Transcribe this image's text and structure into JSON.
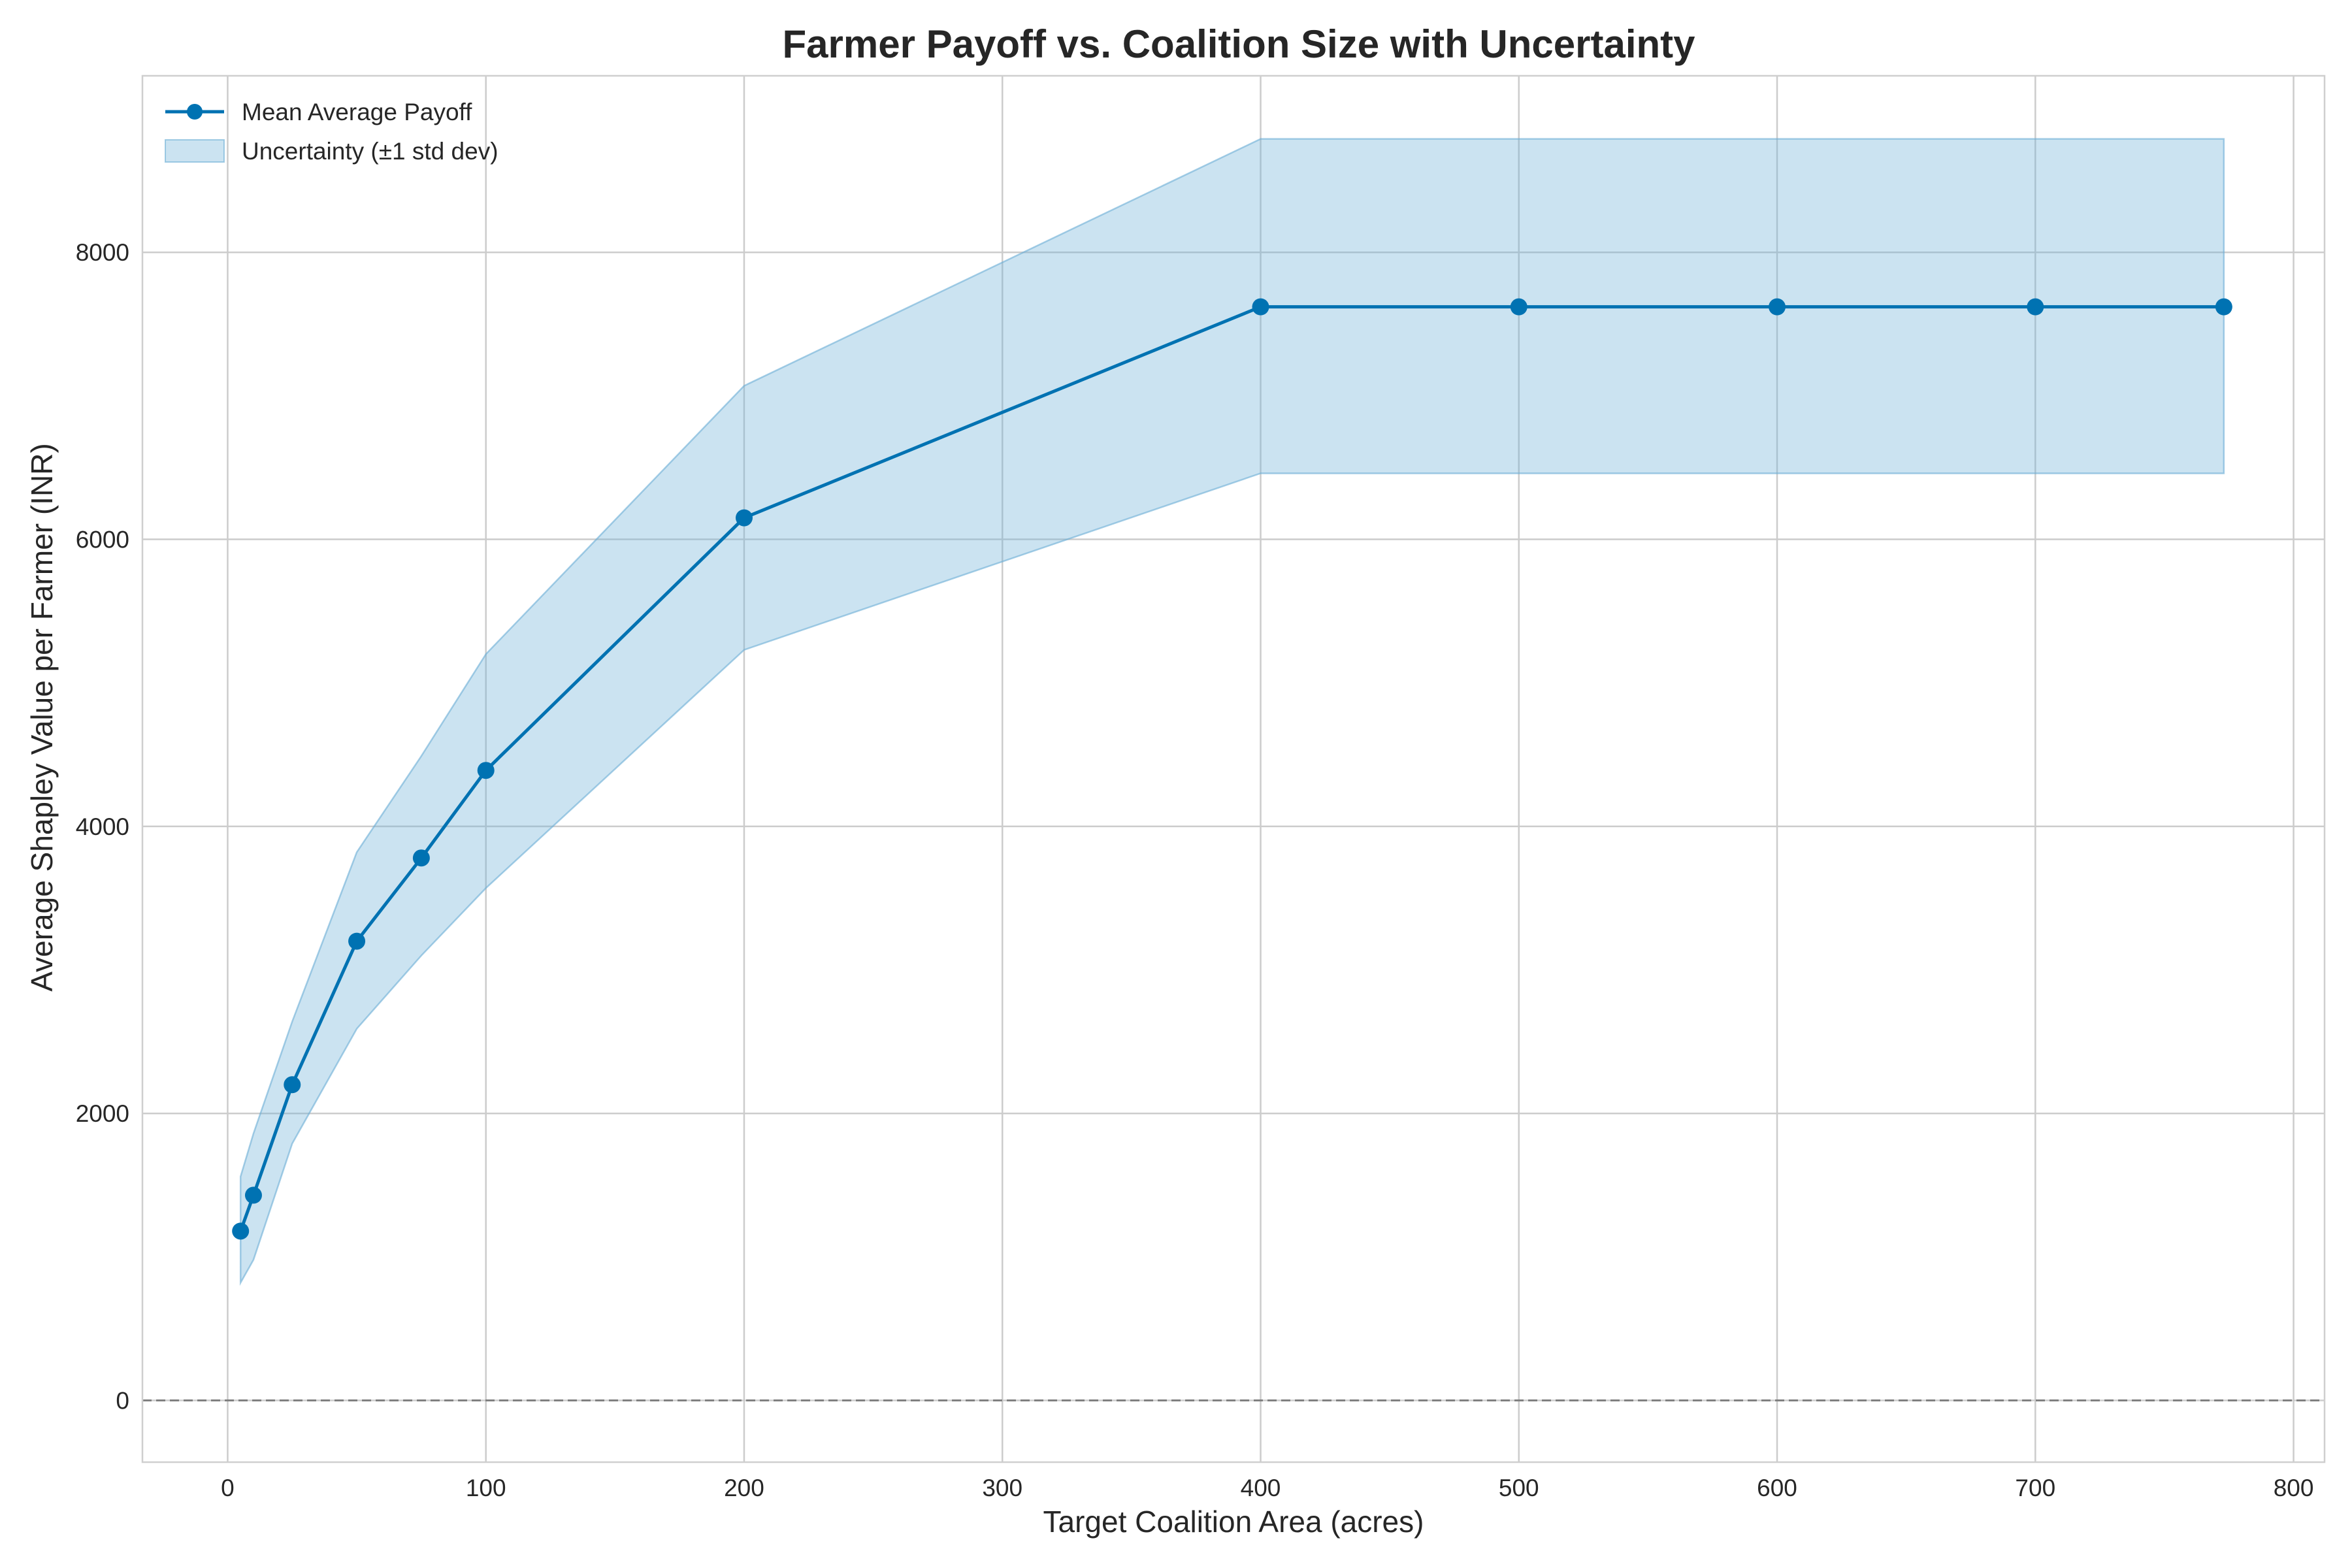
{
  "chart_data": {
    "type": "line",
    "title": "Farmer Payoff vs. Coalition Size with Uncertainty",
    "xlabel": "Target Coalition Area (acres)",
    "ylabel": "Average Shapley Value per Farmer (INR)",
    "xlim": [
      -33,
      812
    ],
    "ylim": [
      -430,
      9230
    ],
    "xticks": [
      0,
      100,
      200,
      300,
      400,
      500,
      600,
      700,
      800
    ],
    "yticks": [
      0,
      2000,
      4000,
      6000,
      8000
    ],
    "x": [
      5,
      10,
      25,
      50,
      75,
      100,
      200,
      400,
      500,
      600,
      700,
      773
    ],
    "series": [
      {
        "name": "Mean Average Payoff",
        "color": "#0072B2",
        "marker": "circle",
        "values": [
          1180,
          1430,
          2200,
          3200,
          3780,
          4390,
          6150,
          7620,
          7620,
          7620,
          7620,
          7620
        ]
      }
    ],
    "band": {
      "name": "Uncertainty (±1 std dev)",
      "color": "#6BAED6",
      "lower": [
        820,
        980,
        1790,
        2590,
        3100,
        3570,
        5230,
        6460,
        6460,
        6460,
        6460,
        6460
      ],
      "upper": [
        1560,
        1860,
        2640,
        3820,
        4490,
        5200,
        7070,
        8790,
        8790,
        8790,
        8790,
        8790
      ]
    },
    "reference_line": {
      "y": 0,
      "style": "dashed",
      "color": "#808080"
    },
    "grid": true,
    "legend_position": "top-left"
  }
}
